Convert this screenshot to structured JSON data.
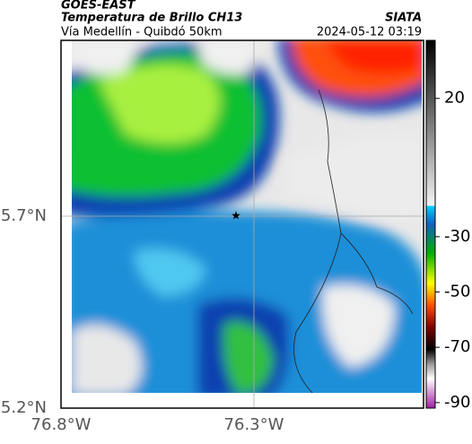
{
  "header": {
    "source": "GOES-EAST",
    "title": "Temperatura de Brillo CH13",
    "subtitle": "Vía Medellín - Quibdó 50km",
    "agency": "SIATA",
    "datetime": "2024-05-12 03:19"
  },
  "map": {
    "lat_ticks": [
      "5.7°N",
      "5.2°N"
    ],
    "lon_ticks": [
      "76.8°W",
      "76.3°W"
    ]
  },
  "colorbar": {
    "clim": [
      -92,
      41
    ],
    "ticks": [
      20,
      -30,
      -50,
      -70,
      -90
    ]
  }
}
